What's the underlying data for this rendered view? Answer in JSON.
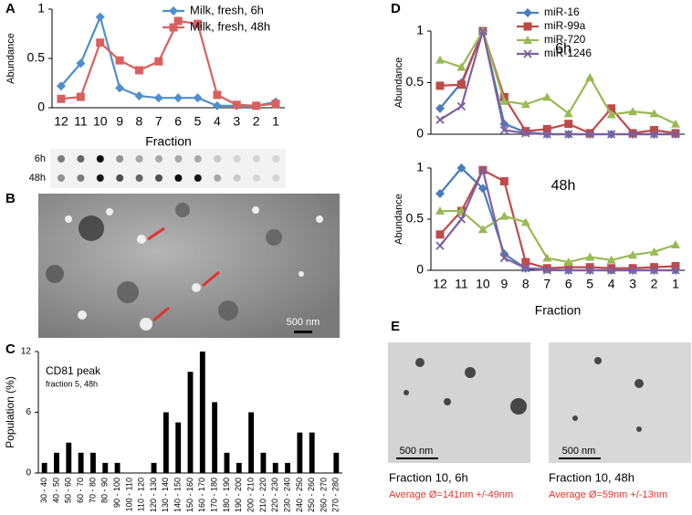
{
  "chart_data": [
    {
      "type": "line",
      "ylabel": "Abundance",
      "xlabel": "Fraction",
      "legend": "upper right",
      "categories": [
        "12",
        "11",
        "10",
        "9",
        "8",
        "7",
        "6",
        "5",
        "4",
        "3",
        "2",
        "1"
      ],
      "ylim": [
        0,
        1
      ],
      "yticks": [
        0,
        0.5,
        1
      ],
      "series": [
        {
          "name": "Milk, fresh, 6h",
          "color": "#4f8fcc",
          "values": [
            0.22,
            0.45,
            0.92,
            0.2,
            0.12,
            0.1,
            0.1,
            0.1,
            0.02,
            0.02,
            0.02,
            0.06
          ]
        },
        {
          "name": "Milk, fresh, 48h",
          "color": "#d9605f",
          "values": [
            0.09,
            0.11,
            0.66,
            0.48,
            0.38,
            0.47,
            0.88,
            0.85,
            0.13,
            0.03,
            0.02,
            0.04
          ]
        }
      ]
    },
    {
      "type": "bar",
      "ylabel": "Population (%)",
      "annotation": "CD81 peak",
      "subannotation": "fraction 5, 48h",
      "color": "#000000",
      "categories": [
        "30 - 40",
        "40 - 50",
        "50 - 60",
        "60 - 70",
        "70 - 80",
        "80 - 90",
        "90 - 100",
        "100 - 110",
        "110 - 120",
        "120 - 130",
        "130 - 140",
        "140 - 150",
        "150 - 160",
        "160 - 170",
        "170 - 180",
        "180 - 190",
        "190 - 200",
        "200 - 210",
        "210 - 220",
        "220 - 230",
        "230 - 240",
        "240 - 250",
        "250 - 260",
        "260 - 270",
        "270 - 280"
      ],
      "values": [
        1,
        2,
        3,
        2,
        2,
        1,
        1,
        0,
        0,
        1,
        6,
        5,
        10,
        12,
        7,
        2,
        1,
        6,
        2,
        1,
        1,
        4,
        4,
        0,
        2
      ],
      "ylim": [
        0,
        12
      ],
      "yticks": [
        0,
        6,
        12
      ]
    },
    {
      "type": "line",
      "ylabel": "Abundance",
      "annotation": "6h",
      "legend": "upper left",
      "ylim": [
        0,
        1
      ],
      "yticks": [
        0,
        0.5,
        1
      ],
      "series": [
        {
          "name": "miR-16",
          "color": "#4a7ebb",
          "values": [
            0.25,
            0.5,
            1,
            0.1,
            0.02,
            0,
            0,
            0,
            0,
            0,
            0,
            0
          ]
        },
        {
          "name": "miR-99a",
          "color": "#be4b48",
          "values": [
            0.47,
            0.48,
            1,
            0.36,
            0.03,
            0.05,
            0.1,
            0.01,
            0.25,
            0.01,
            0.04,
            0.01
          ]
        },
        {
          "name": "miR-720",
          "color": "#98b954",
          "values": [
            0.72,
            0.65,
            1,
            0.32,
            0.29,
            0.36,
            0.2,
            0.55,
            0.19,
            0.22,
            0.2,
            0.1
          ]
        },
        {
          "name": "miR-1246",
          "color": "#7d60a0",
          "values": [
            0.14,
            0.27,
            1,
            0.04,
            0.01,
            0,
            0,
            0,
            0,
            0,
            0,
            0
          ]
        }
      ]
    },
    {
      "type": "line",
      "ylabel": "Abundance",
      "xlabel": "Fraction",
      "annotation": "48h",
      "categories": [
        "12",
        "11",
        "10",
        "9",
        "8",
        "7",
        "6",
        "5",
        "4",
        "3",
        "2",
        "1"
      ],
      "ylim": [
        0,
        1
      ],
      "yticks": [
        0,
        0.5,
        1
      ],
      "series": [
        {
          "color": "#4a7ebb",
          "values": [
            0.75,
            1,
            0.8,
            0.16,
            0.02,
            0.01,
            0,
            0,
            0,
            0,
            0,
            0
          ]
        },
        {
          "color": "#be4b48",
          "values": [
            0.35,
            0.58,
            0.98,
            0.87,
            0.08,
            0.02,
            0.03,
            0.03,
            0.02,
            0.02,
            0.03,
            0.04
          ]
        },
        {
          "color": "#98b954",
          "values": [
            0.58,
            0.58,
            0.4,
            0.53,
            0.47,
            0.12,
            0.08,
            0.13,
            0.1,
            0.15,
            0.18,
            0.25
          ]
        },
        {
          "color": "#7d60a0",
          "values": [
            0.24,
            0.5,
            0.98,
            0.12,
            0.02,
            0,
            0,
            0,
            0,
            0,
            0,
            0
          ]
        }
      ]
    }
  ],
  "panels": {
    "letters": [
      "A",
      "B",
      "C",
      "D",
      "E"
    ],
    "blot_labels": [
      "6h",
      "48h"
    ],
    "scale_bars": [
      "500 nm",
      "500 nm",
      "500 nm"
    ],
    "captions": [
      {
        "title": "Fraction 10, 6h",
        "average": "Average Ø=141nm +/-49nm"
      },
      {
        "title": "Fraction 10, 48h",
        "average": "Average Ø=59nm +/-13nm"
      }
    ]
  }
}
